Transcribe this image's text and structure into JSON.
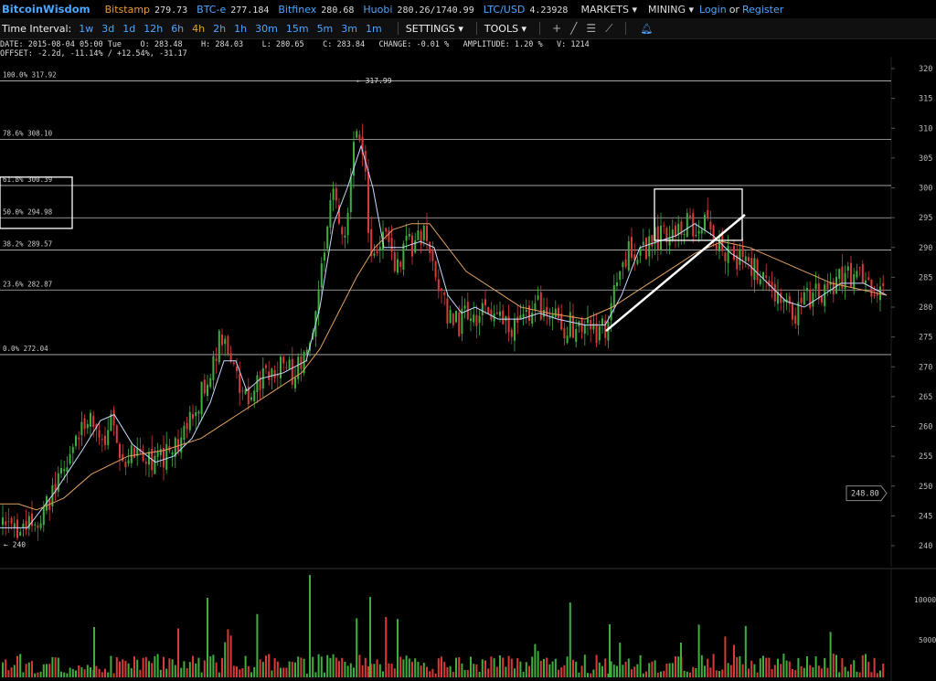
{
  "brand": "BitcoinWisdom",
  "exchanges": [
    {
      "name": "Bitstamp",
      "price": "279.73",
      "color": "#e89a3c"
    },
    {
      "name": "BTC-e",
      "price": "277.184",
      "color": "#4da6ff"
    },
    {
      "name": "Bitfinex",
      "price": "280.68",
      "color": "#4da6ff"
    },
    {
      "name": "Huobi",
      "price": "280.26/1740.99",
      "color": "#4da6ff"
    },
    {
      "name": "LTC/USD",
      "price": "4.23928",
      "color": "#4da6ff"
    }
  ],
  "menus": {
    "markets": "MARKETS ▾",
    "mining": "MINING ▾"
  },
  "auth": {
    "login": "Login",
    "or": "or",
    "register": "Register"
  },
  "toolbar": {
    "label": "Time Interval:",
    "intervals": [
      "1w",
      "3d",
      "1d",
      "12h",
      "6h",
      "4h",
      "2h",
      "1h",
      "30m",
      "15m",
      "5m",
      "3m",
      "1m"
    ],
    "active_interval": "4h",
    "settings": "SETTINGS ▾",
    "tools": "TOOLS ▾"
  },
  "info": {
    "line1": "DATE: 2015-08-04 05:00 Tue    O: 283.48    H: 284.03    L: 280.65    C: 283.84   CHANGE: -0.01 %   AMPLITUDE: 1.20 %   V: 1214",
    "line2": "OFFSET: -2.2d, -11.14% / +12.54%, -31.17"
  },
  "chart_data": {
    "type": "candlestick",
    "y_axis_ticks": [
      320,
      315,
      310,
      305,
      300,
      295,
      290,
      285,
      280,
      275,
      270,
      265,
      260,
      255,
      250,
      245,
      240
    ],
    "ylim": [
      236,
      321
    ],
    "volume_ticks": [
      "10000",
      "5000"
    ],
    "fibonacci_levels": [
      {
        "label": "100.0% 317.92",
        "price": 317.92
      },
      {
        "label": "78.6% 308.10",
        "price": 308.1
      },
      {
        "label": "61.8% 300.39",
        "price": 300.39
      },
      {
        "label": "50.0% 294.98",
        "price": 294.98
      },
      {
        "label": "38.2% 289.57",
        "price": 289.57
      },
      {
        "label": "23.6% 282.87",
        "price": 282.87
      },
      {
        "label": "0.0% 272.04",
        "price": 272.04
      }
    ],
    "high_marker": "← 317.99",
    "low_marker": "← 240",
    "current_price": "248.80",
    "close_path": [
      [
        0,
        243
      ],
      [
        40,
        243
      ],
      [
        60,
        250
      ],
      [
        80,
        256
      ],
      [
        95,
        262
      ],
      [
        110,
        256
      ],
      [
        120,
        260
      ],
      [
        135,
        255
      ],
      [
        150,
        256
      ],
      [
        170,
        254
      ],
      [
        190,
        256
      ],
      [
        210,
        262
      ],
      [
        225,
        268
      ],
      [
        240,
        275
      ],
      [
        250,
        272
      ],
      [
        260,
        266
      ],
      [
        270,
        265
      ],
      [
        285,
        268
      ],
      [
        300,
        270
      ],
      [
        320,
        269
      ],
      [
        335,
        272
      ],
      [
        345,
        280
      ],
      [
        355,
        292
      ],
      [
        365,
        300
      ],
      [
        375,
        292
      ],
      [
        382,
        300
      ],
      [
        390,
        312
      ],
      [
        398,
        306
      ],
      [
        403,
        290
      ],
      [
        410,
        288
      ],
      [
        420,
        292
      ],
      [
        430,
        288
      ],
      [
        445,
        290
      ],
      [
        460,
        292
      ],
      [
        470,
        290
      ],
      [
        480,
        283
      ],
      [
        490,
        278
      ],
      [
        500,
        277
      ],
      [
        510,
        280
      ],
      [
        520,
        279
      ],
      [
        540,
        278
      ],
      [
        560,
        277
      ],
      [
        580,
        280
      ],
      [
        595,
        280
      ],
      [
        610,
        277
      ],
      [
        630,
        277
      ],
      [
        650,
        276
      ],
      [
        665,
        277
      ],
      [
        675,
        285
      ],
      [
        690,
        290
      ],
      [
        705,
        290
      ],
      [
        720,
        292
      ],
      [
        735,
        293
      ],
      [
        750,
        294
      ],
      [
        765,
        294
      ],
      [
        780,
        292
      ],
      [
        795,
        289
      ],
      [
        810,
        288
      ],
      [
        825,
        286
      ],
      [
        840,
        283
      ],
      [
        855,
        281
      ],
      [
        870,
        279
      ],
      [
        885,
        282
      ],
      [
        900,
        282
      ],
      [
        915,
        284
      ],
      [
        930,
        285
      ],
      [
        945,
        284
      ],
      [
        960,
        282
      ],
      [
        970,
        281
      ]
    ],
    "ma_series": [
      {
        "color": "#c8d8ff",
        "values": [
          [
            0,
            243
          ],
          [
            30,
            243
          ],
          [
            60,
            249
          ],
          [
            90,
            256
          ],
          [
            110,
            261
          ],
          [
            125,
            262
          ],
          [
            145,
            257
          ],
          [
            170,
            254
          ],
          [
            190,
            255
          ],
          [
            210,
            258
          ],
          [
            230,
            264
          ],
          [
            245,
            271
          ],
          [
            258,
            271
          ],
          [
            270,
            266
          ],
          [
            285,
            268
          ],
          [
            310,
            269
          ],
          [
            335,
            271
          ],
          [
            350,
            280
          ],
          [
            365,
            294
          ],
          [
            380,
            300
          ],
          [
            395,
            307
          ],
          [
            408,
            300
          ],
          [
            420,
            290
          ],
          [
            440,
            290
          ],
          [
            460,
            291
          ],
          [
            475,
            290
          ],
          [
            490,
            282
          ],
          [
            505,
            279
          ],
          [
            520,
            280
          ],
          [
            545,
            278
          ],
          [
            570,
            278
          ],
          [
            590,
            279
          ],
          [
            610,
            278
          ],
          [
            640,
            277
          ],
          [
            662,
            277
          ],
          [
            680,
            282
          ],
          [
            700,
            290
          ],
          [
            720,
            291
          ],
          [
            740,
            292
          ],
          [
            760,
            294
          ],
          [
            780,
            292
          ],
          [
            800,
            289
          ],
          [
            820,
            287
          ],
          [
            840,
            284
          ],
          [
            860,
            281
          ],
          [
            880,
            280
          ],
          [
            900,
            282
          ],
          [
            920,
            284
          ],
          [
            945,
            284
          ],
          [
            970,
            282
          ]
        ]
      },
      {
        "color": "#e0a060",
        "values": [
          [
            0,
            247
          ],
          [
            20,
            247
          ],
          [
            40,
            246
          ],
          [
            70,
            248
          ],
          [
            100,
            252
          ],
          [
            140,
            255
          ],
          [
            180,
            256
          ],
          [
            220,
            258
          ],
          [
            260,
            262
          ],
          [
            300,
            266
          ],
          [
            330,
            269
          ],
          [
            350,
            273
          ],
          [
            370,
            279
          ],
          [
            390,
            285
          ],
          [
            410,
            290
          ],
          [
            430,
            293
          ],
          [
            450,
            294
          ],
          [
            470,
            294
          ],
          [
            490,
            290
          ],
          [
            510,
            286
          ],
          [
            540,
            283
          ],
          [
            570,
            280
          ],
          [
            600,
            279
          ],
          [
            640,
            278
          ],
          [
            670,
            280
          ],
          [
            700,
            283
          ],
          [
            730,
            286
          ],
          [
            760,
            289
          ],
          [
            790,
            291
          ],
          [
            820,
            290
          ],
          [
            850,
            288
          ],
          [
            880,
            286
          ],
          [
            910,
            284
          ],
          [
            940,
            283
          ],
          [
            970,
            282
          ]
        ]
      }
    ],
    "trendline": {
      "from": [
        663,
        276
      ],
      "to": [
        815,
        295.5
      ]
    },
    "box_region": {
      "x_from": 716,
      "x_to": 812,
      "y_from": 299.8,
      "y_to": 291.2
    }
  }
}
